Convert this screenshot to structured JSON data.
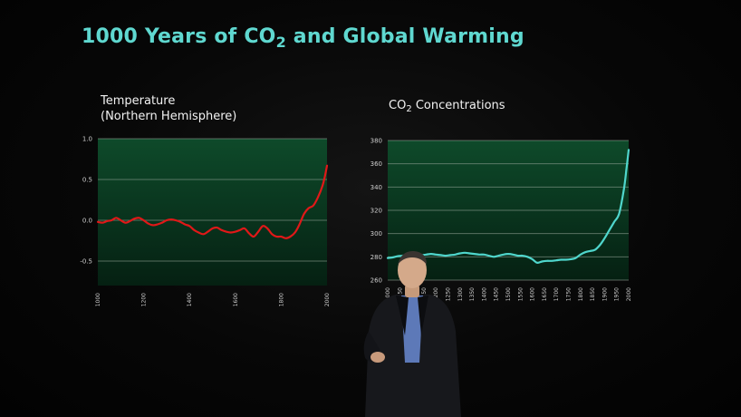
{
  "slide": {
    "title_pre": "1000 Years of CO",
    "title_sub": "2",
    "title_post": " and Global Warming"
  },
  "colors": {
    "title": "#5fd8d0",
    "temperature_line": "#e01818",
    "co2_line": "#4fd6cc",
    "plot_bg_top": "#0e4a2a",
    "plot_bg_bottom": "#052012",
    "gridline": "#9aa89c"
  },
  "chart_data": [
    {
      "id": "temp",
      "type": "line",
      "title_lines": [
        "Temperature",
        "(Northern Hemisphere)"
      ],
      "xlabel": "",
      "ylabel": "",
      "xlim": [
        1000,
        2000
      ],
      "ylim": [
        -0.8,
        1.0
      ],
      "yticks": [
        1.0,
        0.5,
        0.0,
        -0.5
      ],
      "ytick_labels": [
        "1.0",
        "0.5",
        "0.0",
        "-0.5"
      ],
      "xticks": [
        1000,
        1200,
        1400,
        1600,
        1800,
        2000
      ],
      "xtick_labels": [
        "1000",
        "1200",
        "1400",
        "1600",
        "1800",
        "2000"
      ],
      "grid": true,
      "series": [
        {
          "x": [
            1000,
            1020,
            1040,
            1060,
            1080,
            1100,
            1120,
            1140,
            1160,
            1180,
            1200,
            1220,
            1240,
            1260,
            1280,
            1300,
            1320,
            1340,
            1360,
            1380,
            1400,
            1420,
            1440,
            1460,
            1480,
            1500,
            1520,
            1540,
            1560,
            1580,
            1600,
            1620,
            1640,
            1660,
            1680,
            1700,
            1720,
            1740,
            1760,
            1780,
            1800,
            1820,
            1840,
            1860,
            1880,
            1900,
            1920,
            1940,
            1960,
            1980,
            1990,
            2000
          ],
          "y": [
            -0.02,
            -0.03,
            -0.01,
            0.0,
            0.03,
            0.0,
            -0.03,
            -0.01,
            0.02,
            0.03,
            0.0,
            -0.04,
            -0.06,
            -0.05,
            -0.03,
            0.0,
            0.01,
            0.0,
            -0.02,
            -0.05,
            -0.07,
            -0.12,
            -0.15,
            -0.17,
            -0.14,
            -0.1,
            -0.09,
            -0.12,
            -0.14,
            -0.15,
            -0.14,
            -0.12,
            -0.1,
            -0.16,
            -0.2,
            -0.14,
            -0.07,
            -0.1,
            -0.17,
            -0.2,
            -0.2,
            -0.22,
            -0.2,
            -0.15,
            -0.05,
            0.08,
            0.15,
            0.18,
            0.28,
            0.42,
            0.53,
            0.67
          ]
        }
      ]
    },
    {
      "id": "co2",
      "type": "line",
      "title_pre": "CO",
      "title_sub": "2",
      "title_post": " Concentrations",
      "xlabel": "",
      "ylabel": "",
      "xlim": [
        1000,
        2000
      ],
      "ylim": [
        260,
        380
      ],
      "yticks": [
        260,
        280,
        300,
        320,
        340,
        360,
        380
      ],
      "ytick_labels": [
        "260",
        "280",
        "300",
        "320",
        "340",
        "360",
        "380"
      ],
      "xticks": [
        1000,
        1050,
        1100,
        1150,
        1200,
        1250,
        1300,
        1350,
        1400,
        1450,
        1500,
        1550,
        1600,
        1650,
        1700,
        1750,
        1800,
        1850,
        1900,
        1950,
        2000
      ],
      "xtick_labels": [
        "1000",
        "1050",
        "1100",
        "1150",
        "1200",
        "1250",
        "1300",
        "1350",
        "1400",
        "1450",
        "1500",
        "1550",
        "1600",
        "1650",
        "1700",
        "1750",
        "1800",
        "1850",
        "1900",
        "1950",
        "2000"
      ],
      "grid": true,
      "series": [
        {
          "x": [
            1000,
            1020,
            1040,
            1060,
            1080,
            1100,
            1120,
            1140,
            1160,
            1180,
            1200,
            1220,
            1240,
            1260,
            1280,
            1300,
            1320,
            1340,
            1360,
            1380,
            1400,
            1420,
            1440,
            1460,
            1480,
            1500,
            1520,
            1540,
            1560,
            1580,
            1600,
            1620,
            1640,
            1660,
            1680,
            1700,
            1720,
            1740,
            1760,
            1780,
            1800,
            1820,
            1840,
            1860,
            1880,
            1900,
            1920,
            1940,
            1960,
            1980,
            1990,
            2000
          ],
          "y": [
            279,
            279.5,
            280.5,
            281,
            282,
            283,
            282,
            281.5,
            282,
            282.5,
            282,
            281.5,
            281,
            281.5,
            282,
            283,
            283.5,
            283,
            282.5,
            282,
            282,
            281,
            280,
            281,
            282,
            282.5,
            282,
            281,
            281,
            280,
            278,
            275,
            276,
            276.5,
            276.5,
            277,
            277.5,
            277.5,
            278,
            279,
            282,
            284,
            285,
            286,
            290,
            296,
            303,
            310,
            317,
            338,
            354,
            372
          ]
        }
      ]
    }
  ]
}
